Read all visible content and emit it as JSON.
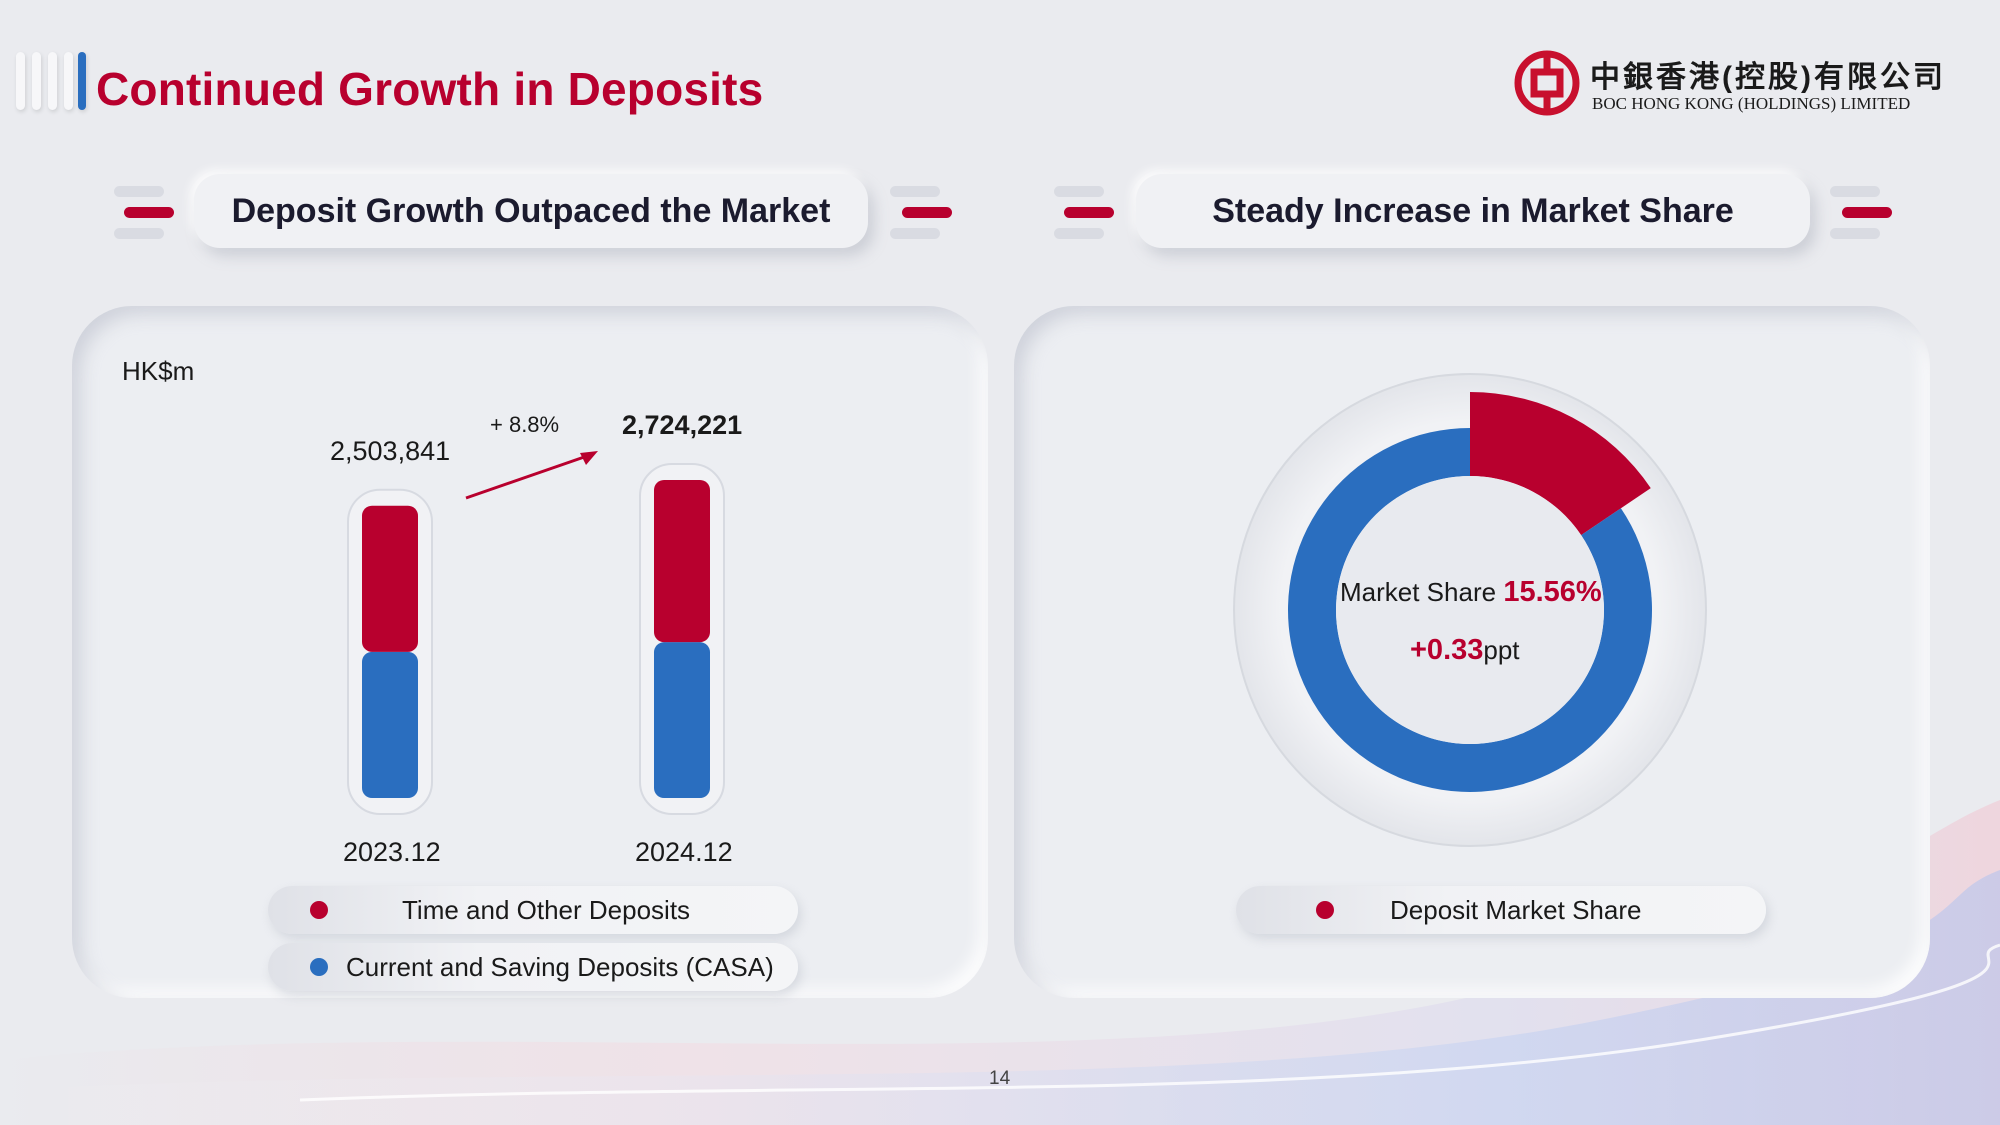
{
  "header": {
    "title": "Continued Growth in Deposits",
    "logo_cn": "中銀香港(控股)有限公司",
    "logo_en": "BOC HONG KONG (HOLDINGS) LIMITED"
  },
  "left_section": {
    "heading": "Deposit Growth Outpaced the Market",
    "unit": "HK$m",
    "growth_label": "+ 8.8%",
    "legend": [
      "Time and Other Deposits",
      "Current and Saving Deposits (CASA)"
    ]
  },
  "right_section": {
    "heading": "Steady Increase in Market Share",
    "center_label": "Market Share",
    "share_value": "15.56%",
    "change_value": "+0.33",
    "change_unit": "ppt",
    "legend": [
      "Deposit Market Share"
    ]
  },
  "footer": {
    "page_number": "14"
  },
  "colors": {
    "red": "#b8002e",
    "blue": "#2a6ebf",
    "background": "#eaebef"
  },
  "chart_data": [
    {
      "type": "bar",
      "stacked": true,
      "categories": [
        "2023.12",
        "2024.12"
      ],
      "totals": [
        2503841,
        2724221
      ],
      "total_labels": [
        "2,503,841",
        "2,724,221"
      ],
      "series": [
        {
          "name": "Current and Saving Deposits (CASA)",
          "color": "#2a6ebf",
          "share_of_total": [
            0.5,
            0.49
          ]
        },
        {
          "name": "Time and Other Deposits",
          "color": "#b8002e",
          "share_of_total": [
            0.5,
            0.51
          ]
        }
      ],
      "ylabel": "HK$m",
      "annotation": "+ 8.8%"
    },
    {
      "type": "pie",
      "style": "donut",
      "slices": [
        {
          "name": "Deposit Market Share",
          "value": 15.56,
          "color": "#b8002e"
        },
        {
          "name": "",
          "value": 84.44,
          "color": "#2a6ebf"
        }
      ],
      "change": "+0.33ppt"
    }
  ]
}
